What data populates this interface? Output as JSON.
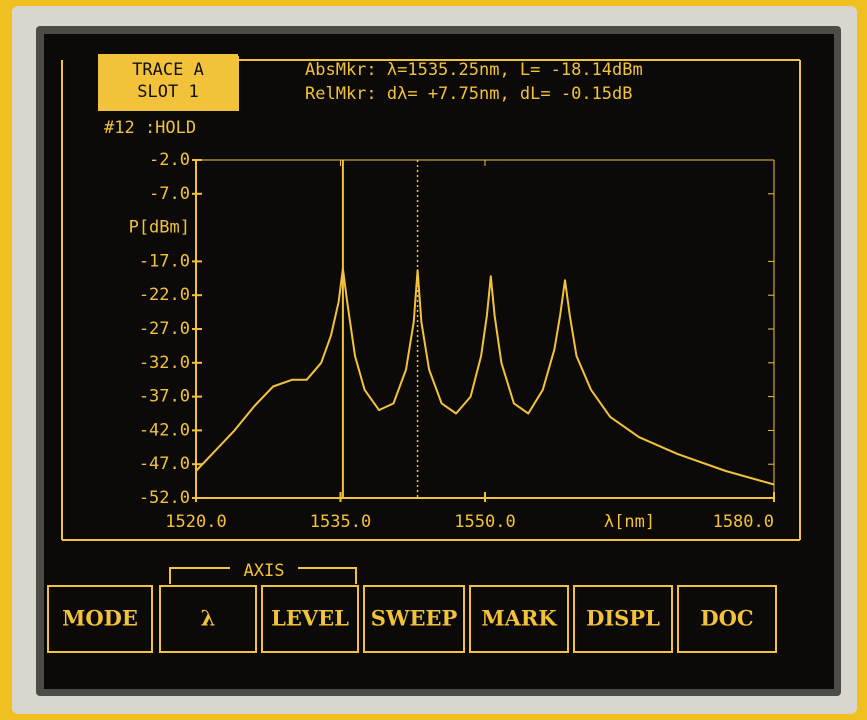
{
  "header": {
    "trace": "TRACE A",
    "slot": "SLOT 1",
    "status": "#12 :HOLD",
    "abs_marker": "AbsMkr:  λ=1535.25nm,  L= -18.14dBm",
    "rel_marker": "RelMkr: dλ=  +7.75nm, dL=  -0.15dB"
  },
  "chart_data": {
    "type": "line",
    "ylabel": "P[dBm]",
    "xlabel": "λ[nm]",
    "xlim": [
      1520,
      1580
    ],
    "ylim": [
      -52,
      -2
    ],
    "xticks": [
      {
        "value": 1520,
        "label": "1520.0"
      },
      {
        "value": 1535,
        "label": "1535.0"
      },
      {
        "value": 1550,
        "label": "1550.0"
      },
      {
        "value": 1580,
        "label": "1580.0"
      }
    ],
    "yticks": [
      {
        "value": -2,
        "label": "-2.0"
      },
      {
        "value": -7,
        "label": "-7.0"
      },
      {
        "value": -17,
        "label": "-17.0"
      },
      {
        "value": -22,
        "label": "-22.0"
      },
      {
        "value": -27,
        "label": "-27.0"
      },
      {
        "value": -32,
        "label": "-32.0"
      },
      {
        "value": -37,
        "label": "-37.0"
      },
      {
        "value": -42,
        "label": "-42.0"
      },
      {
        "value": -47,
        "label": "-47.0"
      },
      {
        "value": -52,
        "label": "-52.0"
      }
    ],
    "color": "#f2c23a",
    "series": [
      {
        "x": [
          1520,
          1522,
          1524,
          1526,
          1528,
          1530,
          1531.5,
          1533,
          1534,
          1534.8,
          1535.25,
          1535.7,
          1536.5,
          1537.5,
          1539,
          1540.5,
          1541.8,
          1542.6,
          1543,
          1543.4,
          1544.2,
          1545.5,
          1547,
          1548.5,
          1549.6,
          1550.2,
          1550.6,
          1551,
          1551.7,
          1553,
          1554.5,
          1556,
          1557.2,
          1557.8,
          1558.3,
          1558.8,
          1559.5,
          1561,
          1563,
          1566,
          1570,
          1575,
          1580
        ],
        "values": [
          -48,
          -45,
          -42,
          -38.5,
          -35.5,
          -34.5,
          -34.5,
          -32,
          -28,
          -23,
          -18.1,
          -23,
          -31,
          -36,
          -39,
          -38,
          -33,
          -26,
          -18.3,
          -26,
          -33,
          -38,
          -39.5,
          -37,
          -31,
          -25,
          -19.2,
          -25,
          -32,
          -38,
          -39.5,
          -36,
          -30,
          -25,
          -19.8,
          -25,
          -31,
          -36,
          -40,
          -43,
          -45.5,
          -48,
          -50
        ]
      }
    ],
    "markers": [
      {
        "x": 1535.25,
        "style": "solid"
      },
      {
        "x": 1543,
        "style": "dotted"
      }
    ]
  },
  "axis_group": "AXIS",
  "softkeys": [
    "MODE",
    "λ",
    "LEVEL",
    "SWEEP",
    "MARK",
    "DISPL",
    "DOC"
  ]
}
